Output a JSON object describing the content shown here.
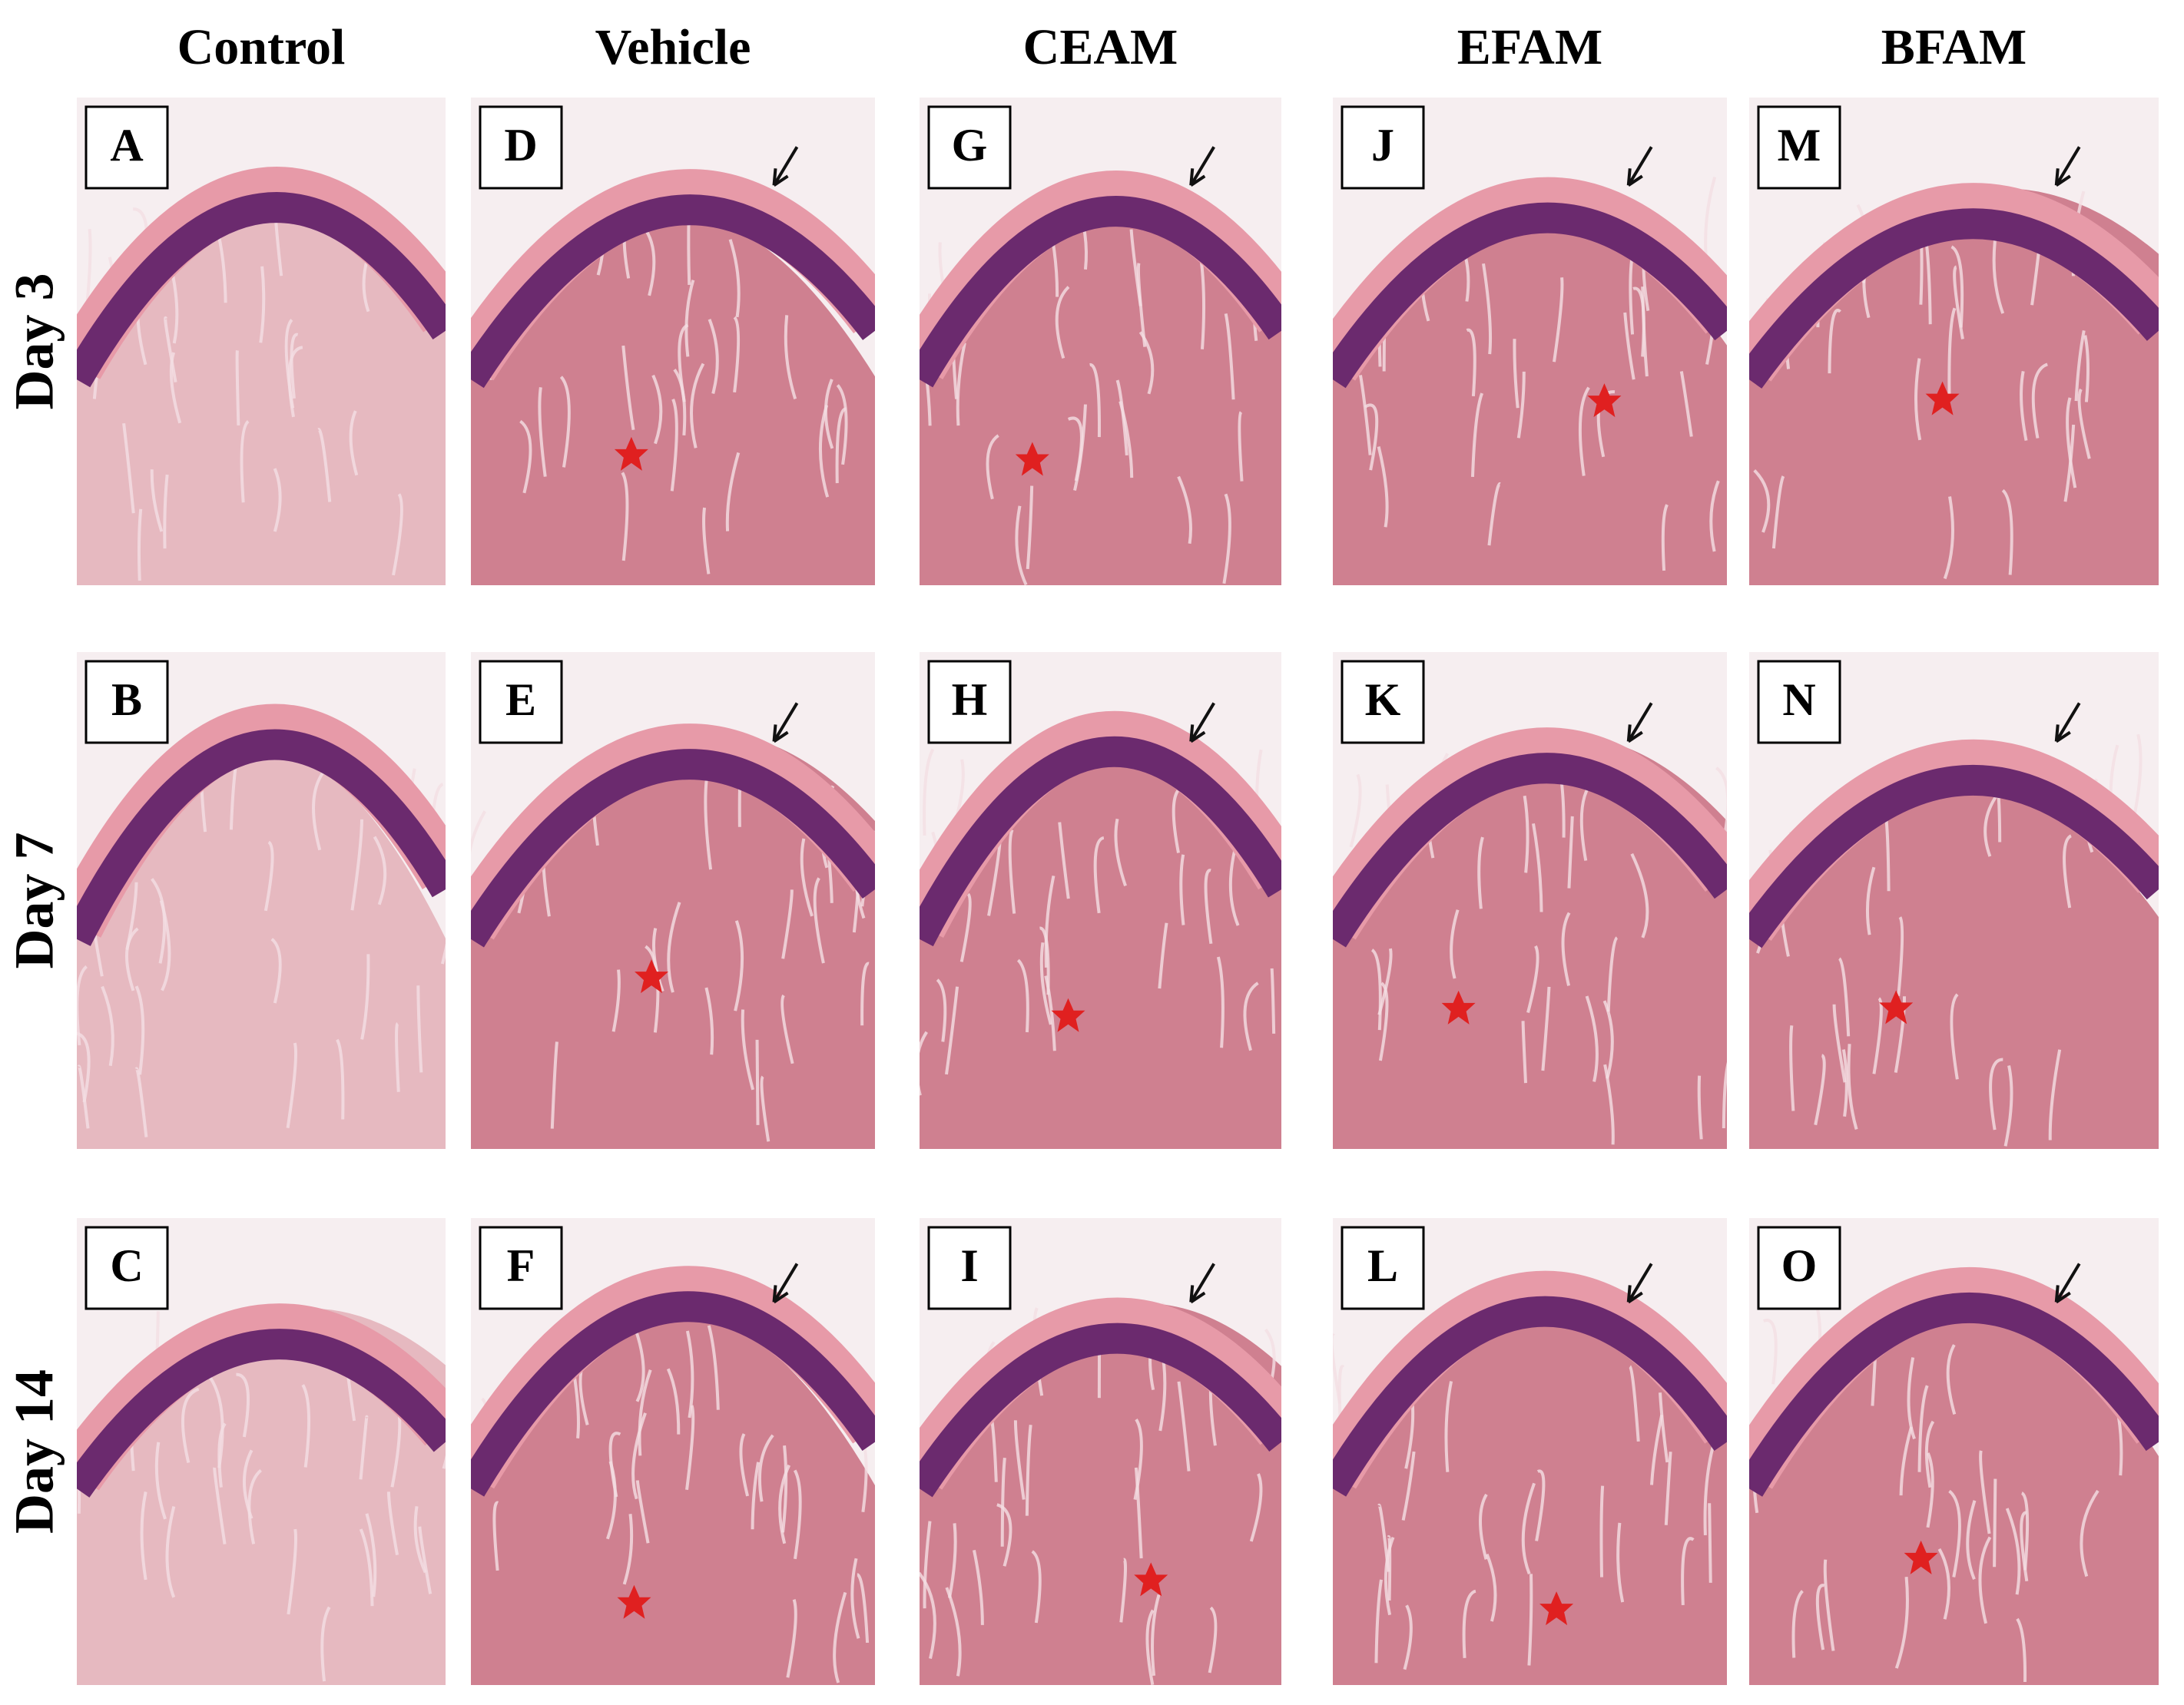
{
  "columns": [
    "Control",
    "Vehicle",
    "CEAM",
    "EFAM",
    "BFAM"
  ],
  "rows": [
    "Day 3",
    "Day 7",
    "Day 14"
  ],
  "panels": [
    [
      "A",
      "D",
      "G",
      "J",
      "M"
    ],
    [
      "B",
      "E",
      "H",
      "K",
      "N"
    ],
    [
      "C",
      "F",
      "I",
      "L",
      "O"
    ]
  ]
}
